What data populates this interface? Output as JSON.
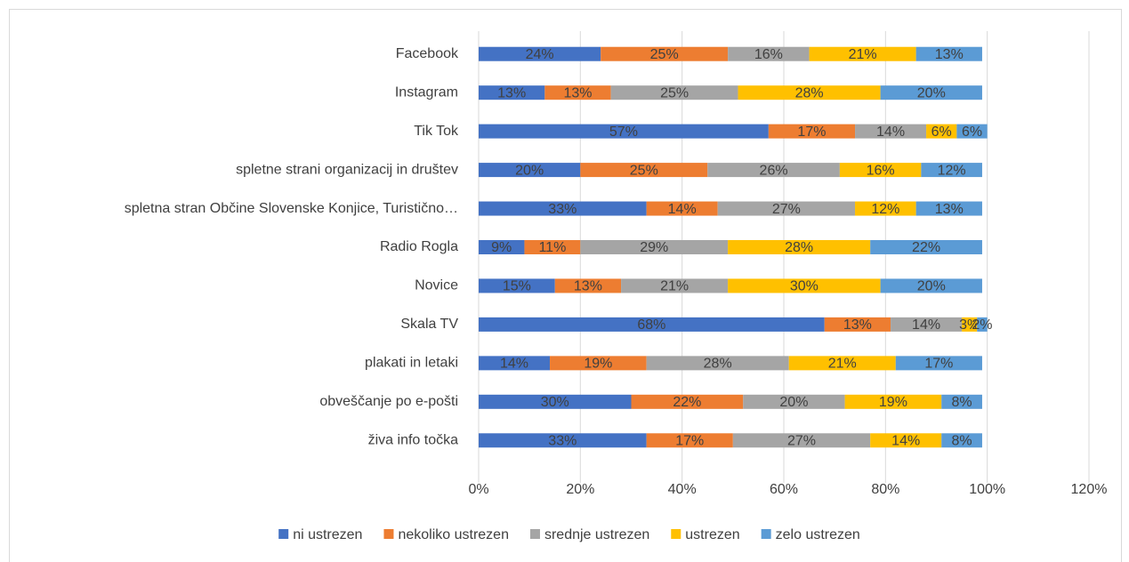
{
  "chart_data": {
    "type": "stacked_barh",
    "categories": [
      "Facebook",
      "Instagram",
      "Tik Tok",
      "spletne strani organizacij in društev",
      "spletna stran Občine Slovenske Konjice, Turistično…",
      "Radio Rogla",
      "Novice",
      "Skala TV",
      "plakati in letaki",
      "obveščanje po e-pošti",
      "živa info točka"
    ],
    "series": [
      {
        "name": "ni ustrezen",
        "color": "#4472c4",
        "values": [
          24,
          13,
          57,
          20,
          33,
          9,
          15,
          68,
          14,
          30,
          33
        ],
        "value_labels": [
          "24%",
          "13%",
          "57%",
          "20%",
          "33%",
          "9%",
          "15%",
          "68%",
          "14%",
          "30%",
          "33%"
        ]
      },
      {
        "name": "nekoliko ustrezen",
        "color": "#ed7d31",
        "values": [
          25,
          13,
          17,
          25,
          14,
          11,
          13,
          13,
          19,
          22,
          17
        ],
        "value_labels": [
          "25%",
          "13%",
          "17%",
          "25%",
          "14%",
          "11%",
          "13%",
          "13%",
          "19%",
          "22%",
          "17%"
        ]
      },
      {
        "name": "srednje ustrezen",
        "color": "#a5a5a5",
        "values": [
          16,
          25,
          14,
          26,
          27,
          29,
          21,
          14,
          28,
          20,
          27
        ],
        "value_labels": [
          "16%",
          "25%",
          "14%",
          "26%",
          "27%",
          "29%",
          "21%",
          "14%",
          "28%",
          "20%",
          "27%"
        ]
      },
      {
        "name": "ustrezen",
        "color": "#ffc000",
        "values": [
          21,
          28,
          6,
          16,
          12,
          28,
          30,
          3,
          21,
          19,
          14
        ],
        "value_labels": [
          "21%",
          "28%",
          "6%",
          "16%",
          "12%",
          "28%",
          "30%",
          "3%",
          "21%",
          "19%",
          "14%"
        ]
      },
      {
        "name": "zelo ustrezen",
        "color": "#5b9bd5",
        "values": [
          13,
          20,
          6,
          12,
          13,
          22,
          20,
          2,
          17,
          8,
          8
        ],
        "value_labels": [
          "13%",
          "20%",
          "6%",
          "12%",
          "13%",
          "22%",
          "20%",
          "2%",
          "17%",
          "8%",
          "8%"
        ]
      }
    ],
    "xlim": [
      0,
      120
    ],
    "xticks": [
      {
        "value": 0,
        "label": "0%"
      },
      {
        "value": 20,
        "label": "20%"
      },
      {
        "value": 40,
        "label": "40%"
      },
      {
        "value": 60,
        "label": "60%"
      },
      {
        "value": 80,
        "label": "80%"
      },
      {
        "value": 100,
        "label": "100%"
      },
      {
        "value": 120,
        "label": "120%"
      }
    ],
    "grid": true,
    "legend": "bottom"
  }
}
